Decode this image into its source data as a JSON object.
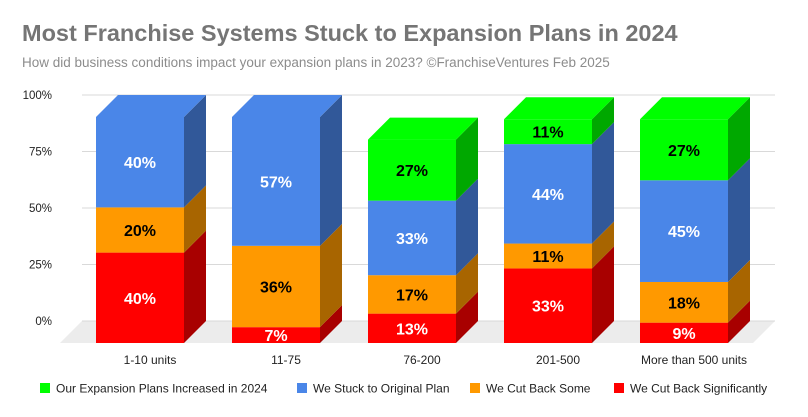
{
  "chart_data": {
    "type": "bar",
    "stacked": true,
    "percent": true,
    "three_d": true,
    "title": "Most Franchise Systems Stuck to Expansion Plans in 2024",
    "subtitle": "How did business conditions impact your expansion plans in 2023?     ©FranchiseVentures Feb 2025",
    "categories": [
      "1-10 units",
      "11-75",
      "76-200",
      "201-500",
      "More than 500 units"
    ],
    "yticks": [
      "0%",
      "25%",
      "50%",
      "75%",
      "100%"
    ],
    "ylim": [
      0,
      100
    ],
    "legend_position": "bottom",
    "series": [
      {
        "name": "We Cut Back Significantly",
        "color": "#ff0000",
        "values": [
          40,
          7,
          13,
          33,
          9
        ],
        "labels": [
          "40%",
          "7%",
          "13%",
          "33%",
          "9%"
        ]
      },
      {
        "name": "We Cut Back Some",
        "color": "#ff9900",
        "values": [
          20,
          36,
          17,
          11,
          18
        ],
        "labels": [
          "20%",
          "36%",
          "17%",
          "11%",
          "18%"
        ]
      },
      {
        "name": "We Stuck to Original Plan",
        "color": "#4a86e8",
        "values": [
          40,
          57,
          33,
          44,
          45
        ],
        "labels": [
          "40%",
          "57%",
          "33%",
          "44%",
          "45%"
        ]
      },
      {
        "name": "Our Expansion Plans Increased in 2024",
        "color": "#00ff00",
        "values": [
          0,
          0,
          27,
          11,
          27
        ],
        "labels": [
          "",
          "",
          "27%",
          "11%",
          "27%"
        ]
      }
    ],
    "legend_order": [
      "Our Expansion Plans Increased in 2024",
      "We Stuck to Original Plan",
      "We Cut Back Some",
      "We Cut Back Significantly"
    ],
    "label_colors": {
      "We Cut Back Significantly": "#ffffff",
      "We Cut Back Some": "#000000",
      "We Stuck to Original Plan": "#ffffff",
      "Our Expansion Plans Increased in 2024": "#000000"
    }
  }
}
